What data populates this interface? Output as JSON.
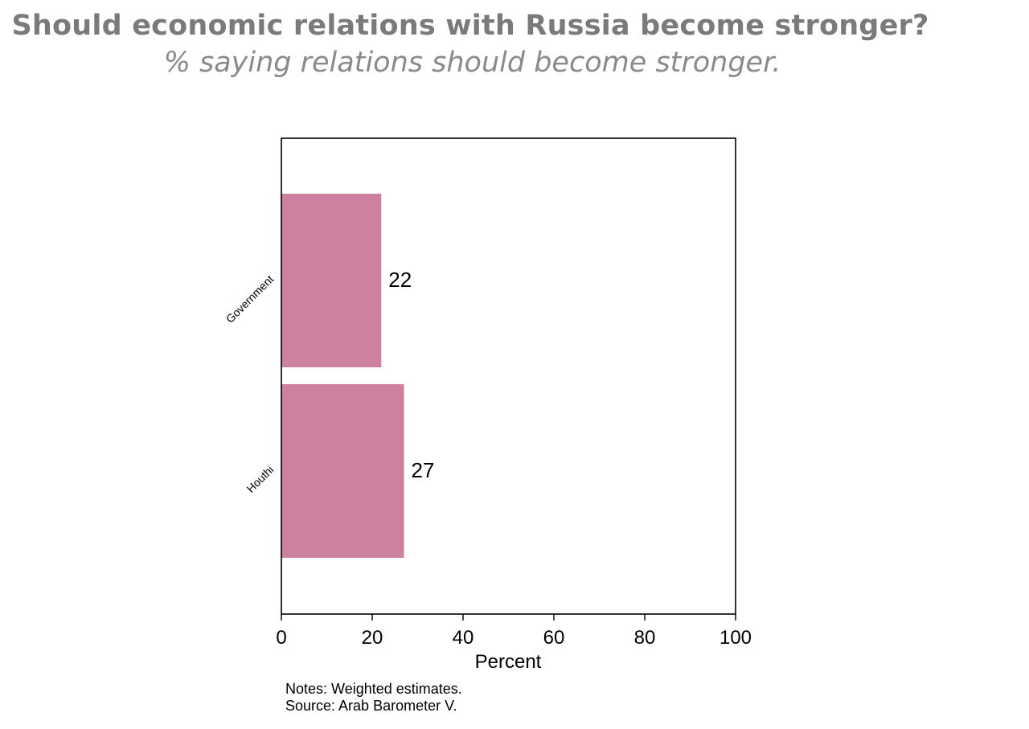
{
  "header": {
    "title": "Should economic relations with Russia become stronger?",
    "subtitle": "% saying relations should become stronger."
  },
  "chart_data": {
    "type": "bar",
    "orientation": "horizontal",
    "categories": [
      "Government",
      "Houthi"
    ],
    "values": [
      22,
      27
    ],
    "data_labels": [
      "22",
      "27"
    ],
    "xlabel": "Percent",
    "ylabel": "",
    "xlim": [
      0,
      100
    ],
    "xticks": [
      0,
      20,
      40,
      60,
      80,
      100
    ],
    "grid": false,
    "legend": "none",
    "bar_color": "#cd809f"
  },
  "footer": {
    "notes": "Notes: Weighted estimates.",
    "source": "Source: Arab Barometer V."
  }
}
